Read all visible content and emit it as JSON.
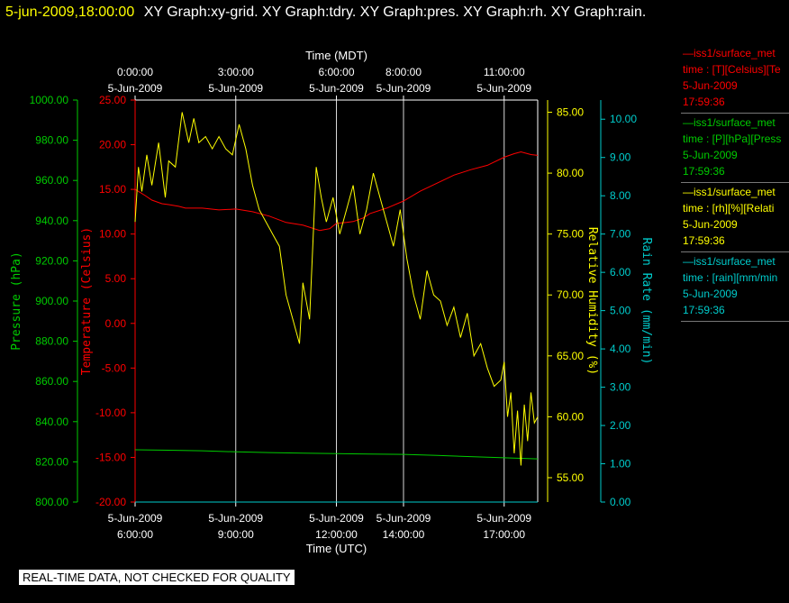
{
  "header": {
    "datetime": "5-jun-2009,18:00:00",
    "graph_names": "XY Graph:xy-grid.  XY Graph:tdry.  XY Graph:pres.  XY Graph:rh.  XY Graph:rain."
  },
  "colors": {
    "background": "#000000",
    "pressure": "#00cc00",
    "temperature": "#ff0000",
    "humidity": "#ffff00",
    "rain": "#00cccc",
    "grid": "#ffffff",
    "axis_text": "#ffffff"
  },
  "legend": [
    {
      "head": "—iss1/surface_met",
      "line2": "time : [T][Celsius][Te",
      "line3": "5-Jun-2009",
      "line4": "17:59:36",
      "color": "#ff0000"
    },
    {
      "head": "—iss1/surface_met",
      "line2": "time : [P][hPa][Press",
      "line3": "5-Jun-2009",
      "line4": "17:59:36",
      "color": "#00cc00"
    },
    {
      "head": "—iss1/surface_met",
      "line2": "time : [rh][%][Relati",
      "line3": "5-Jun-2009",
      "line4": "17:59:36",
      "color": "#ffff00"
    },
    {
      "head": "—iss1/surface_met",
      "line2": "time : [rain][mm/min",
      "line3": "5-Jun-2009",
      "line4": "17:59:36",
      "color": "#00cccc"
    }
  ],
  "disclaimer": "REAL-TIME DATA, NOT CHECKED FOR QUALITY",
  "chart_data": {
    "type": "line",
    "x_unit": "hours UTC on 5-Jun-2009",
    "xlim": [
      6.0,
      18.0
    ],
    "top_axis_title": "Time (MDT)",
    "bottom_axis_title": "Time (UTC)",
    "top_ticks": [
      {
        "x": 6.0,
        "time": "0:00:00",
        "date": "5-Jun-2009"
      },
      {
        "x": 9.0,
        "time": "3:00:00",
        "date": "5-Jun-2009"
      },
      {
        "x": 12.0,
        "time": "6:00:00",
        "date": "5-Jun-2009"
      },
      {
        "x": 14.0,
        "time": "8:00:00",
        "date": "5-Jun-2009"
      },
      {
        "x": 17.0,
        "time": "11:00:00",
        "date": "5-Jun-2009"
      }
    ],
    "bottom_ticks": [
      {
        "x": 6.0,
        "date": "5-Jun-2009",
        "time": "6:00:00"
      },
      {
        "x": 9.0,
        "date": "5-Jun-2009",
        "time": "9:00:00"
      },
      {
        "x": 12.0,
        "date": "5-Jun-2009",
        "time": "12:00:00"
      },
      {
        "x": 14.0,
        "date": "5-Jun-2009",
        "time": "14:00:00"
      },
      {
        "x": 17.0,
        "date": "5-Jun-2009",
        "time": "17:00:00"
      }
    ],
    "grid_x": [
      9.0,
      12.0,
      14.0,
      17.0
    ],
    "axes": [
      {
        "id": "pressure",
        "label": "Pressure (hPa)",
        "ylim": [
          800,
          1000
        ],
        "ticks": [
          "800.00",
          "820.00",
          "840.00",
          "860.00",
          "880.00",
          "900.00",
          "920.00",
          "940.00",
          "960.00",
          "980.00",
          "1000.00"
        ],
        "color": "#00cc00"
      },
      {
        "id": "temperature",
        "label": "Temperature (Celsius)",
        "ylim": [
          -20,
          25
        ],
        "ticks": [
          "-20.00",
          "-15.00",
          "-10.00",
          "-5.00",
          "0.00",
          "5.00",
          "10.00",
          "15.00",
          "20.00",
          "25.00"
        ],
        "color": "#ff0000"
      },
      {
        "id": "humidity",
        "label": "Relative Humidity (%)",
        "ylim": [
          53,
          86
        ],
        "ticks": [
          "55.00",
          "60.00",
          "65.00",
          "70.00",
          "75.00",
          "80.00",
          "85.00"
        ],
        "color": "#ffff00"
      },
      {
        "id": "rain",
        "label": "Rain Rate (mm/min)",
        "ylim": [
          0,
          10.5
        ],
        "ticks": [
          "0.00",
          "1.00",
          "2.00",
          "3.00",
          "4.00",
          "5.00",
          "6.00",
          "7.00",
          "8.00",
          "9.00",
          "10.00"
        ],
        "color": "#00cccc"
      }
    ],
    "series": [
      {
        "axis": "temperature",
        "color": "#ff0000",
        "x": [
          6.0,
          6.3,
          6.5,
          6.8,
          7.0,
          7.3,
          7.5,
          8.0,
          8.5,
          9.0,
          9.5,
          10.0,
          10.5,
          11.0,
          11.5,
          11.8,
          12.0,
          12.3,
          12.5,
          12.8,
          13.0,
          13.5,
          14.0,
          14.5,
          15.0,
          15.5,
          16.0,
          16.5,
          17.0,
          17.3,
          17.5,
          17.8,
          18.0
        ],
        "y": [
          15.0,
          14.3,
          13.8,
          13.4,
          13.3,
          13.1,
          12.9,
          12.9,
          12.7,
          12.8,
          12.5,
          12.0,
          11.3,
          11.0,
          10.4,
          10.6,
          11.2,
          11.3,
          11.4,
          11.8,
          12.3,
          12.9,
          13.7,
          14.8,
          15.7,
          16.6,
          17.2,
          17.7,
          18.6,
          19.0,
          19.2,
          18.9,
          18.8
        ]
      },
      {
        "axis": "pressure",
        "color": "#00cc00",
        "x": [
          6.0,
          7.0,
          8.0,
          9.0,
          10.0,
          11.0,
          12.0,
          13.0,
          14.0,
          15.0,
          16.0,
          17.0,
          18.0
        ],
        "y": [
          826.0,
          825.8,
          825.5,
          825.0,
          824.6,
          824.3,
          824.1,
          823.9,
          823.7,
          823.2,
          822.6,
          822.0,
          821.5
        ]
      },
      {
        "axis": "humidity",
        "color": "#ffff00",
        "x": [
          6.0,
          6.1,
          6.2,
          6.35,
          6.5,
          6.7,
          6.9,
          7.0,
          7.2,
          7.4,
          7.6,
          7.75,
          7.9,
          8.1,
          8.3,
          8.5,
          8.7,
          8.9,
          9.1,
          9.3,
          9.5,
          9.7,
          9.9,
          10.1,
          10.3,
          10.5,
          10.7,
          10.9,
          11.0,
          11.2,
          11.4,
          11.55,
          11.7,
          11.9,
          12.1,
          12.3,
          12.5,
          12.7,
          12.9,
          13.1,
          13.3,
          13.5,
          13.7,
          13.9,
          14.1,
          14.3,
          14.5,
          14.7,
          14.9,
          15.1,
          15.3,
          15.5,
          15.7,
          15.9,
          16.1,
          16.3,
          16.5,
          16.7,
          16.9,
          17.0,
          17.1,
          17.2,
          17.3,
          17.4,
          17.5,
          17.6,
          17.7,
          17.8,
          17.9,
          18.0
        ],
        "y": [
          76.0,
          80.5,
          78.5,
          81.5,
          79.0,
          82.5,
          78.0,
          81.0,
          80.5,
          85.0,
          82.5,
          84.5,
          82.5,
          83.0,
          82.0,
          83.0,
          82.0,
          81.5,
          84.0,
          82.0,
          79.0,
          77.0,
          76.0,
          75.0,
          74.0,
          70.0,
          68.0,
          66.0,
          71.0,
          68.0,
          80.5,
          78.0,
          76.0,
          78.0,
          75.0,
          77.0,
          79.0,
          75.0,
          77.0,
          80.0,
          78.0,
          76.0,
          74.0,
          77.0,
          73.0,
          70.0,
          68.0,
          72.0,
          70.0,
          69.5,
          67.5,
          69.0,
          66.5,
          68.5,
          65.0,
          66.0,
          64.0,
          62.5,
          63.0,
          64.5,
          60.0,
          62.0,
          57.0,
          60.5,
          56.0,
          61.0,
          58.0,
          62.0,
          59.5,
          60.0
        ]
      },
      {
        "axis": "rain",
        "color": "#00cccc",
        "x": [
          6.0,
          18.0
        ],
        "y": [
          0.0,
          0.0
        ]
      }
    ]
  }
}
